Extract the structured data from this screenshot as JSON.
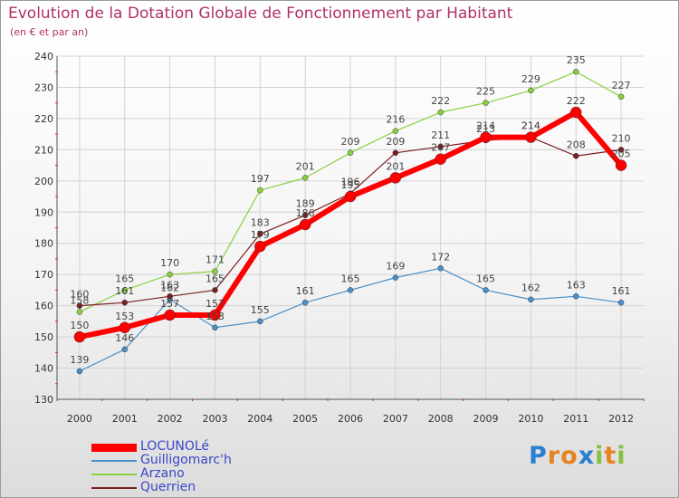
{
  "chart_data": {
    "type": "line",
    "title": "Evolution de la Dotation Globale de Fonctionnement par Habitant",
    "subtitle": "(en € et par an)",
    "xlabel": "",
    "ylabel": "",
    "categories": [
      "2000",
      "2001",
      "2002",
      "2003",
      "2004",
      "2005",
      "2006",
      "2007",
      "2008",
      "2009",
      "2010",
      "2011",
      "2012"
    ],
    "ylim": [
      130,
      240
    ],
    "yticks": [
      130,
      140,
      150,
      160,
      170,
      180,
      190,
      200,
      210,
      220,
      230,
      240
    ],
    "grid": true,
    "legend_position": "bottom-left",
    "series": [
      {
        "name": "LOCUNOLé",
        "color": "#ff0000",
        "values": [
          150,
          153,
          157,
          157,
          179,
          186,
          195,
          201,
          207,
          214,
          214,
          222,
          205
        ]
      },
      {
        "name": "Guilligomarc'h",
        "color": "#4a90c8",
        "values": [
          139,
          146,
          162,
          153,
          155,
          161,
          165,
          169,
          172,
          165,
          162,
          163,
          161
        ]
      },
      {
        "name": "Arzano",
        "color": "#88d040",
        "values": [
          158,
          165,
          170,
          171,
          197,
          201,
          209,
          216,
          222,
          225,
          229,
          235,
          227
        ]
      },
      {
        "name": "Querrien",
        "color": "#7a1f1f",
        "values": [
          160,
          161,
          163,
          165,
          183,
          189,
          196,
          209,
          211,
          213,
          214,
          208,
          210
        ]
      }
    ]
  },
  "logo": {
    "letters": [
      "P",
      "r",
      "o",
      "x",
      "i",
      "t",
      "i"
    ],
    "colors": [
      "#2a7fd0",
      "#e6831e",
      "#e6831e",
      "#2a7fd0",
      "#88c040",
      "#e6831e",
      "#88c040"
    ]
  }
}
